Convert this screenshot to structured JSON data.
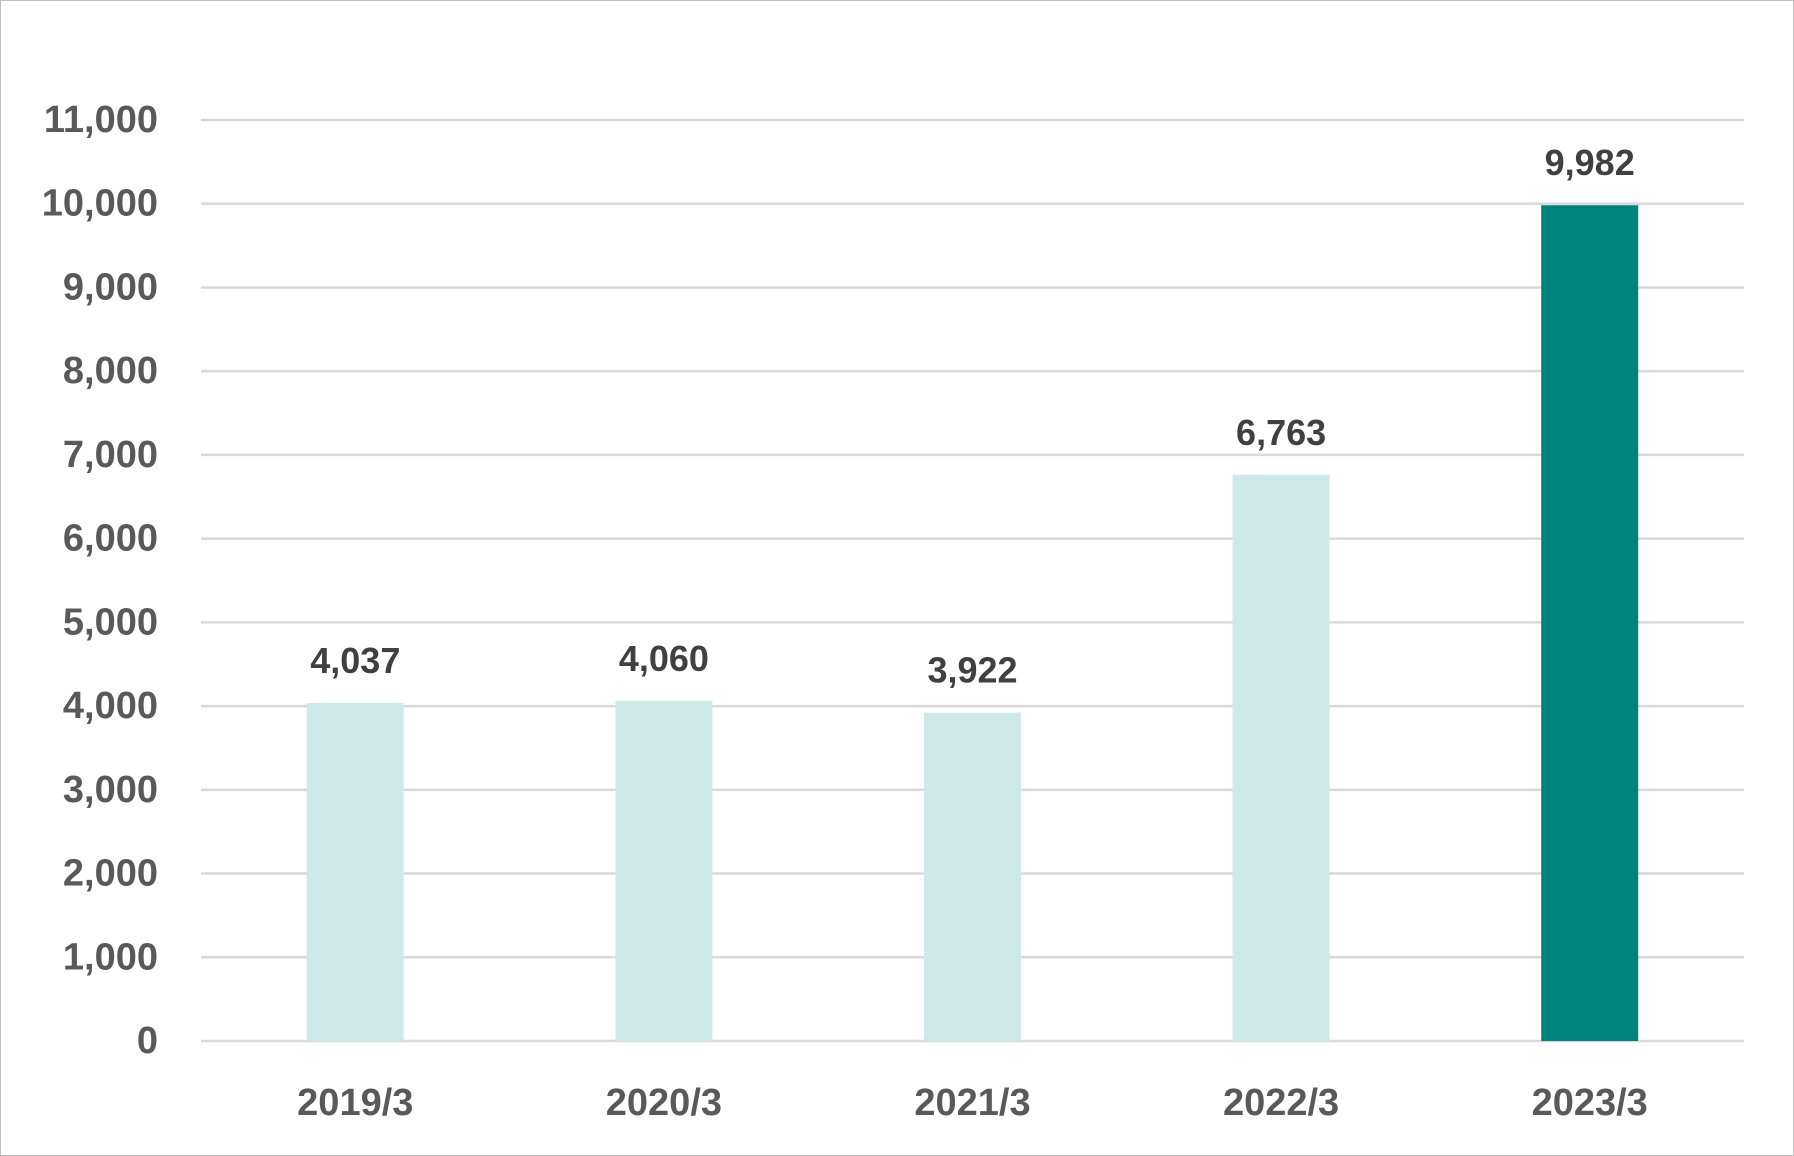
{
  "chart_data": {
    "type": "bar",
    "categories": [
      "2019/3",
      "2020/3",
      "2021/3",
      "2022/3",
      "2023/3"
    ],
    "values": [
      4037,
      4060,
      3922,
      6763,
      9982
    ],
    "value_labels": [
      "4,037",
      "4,060",
      "3,922",
      "6,763",
      "9,982"
    ],
    "title": "",
    "xlabel": "",
    "ylabel": "",
    "ylim": [
      0,
      11000
    ],
    "yticks": [
      0,
      1000,
      2000,
      3000,
      4000,
      5000,
      6000,
      7000,
      8000,
      9000,
      10000,
      11000
    ],
    "ytick_labels": [
      "0",
      "1,000",
      "2,000",
      "3,000",
      "4,000",
      "5,000",
      "6,000",
      "7,000",
      "8,000",
      "9,000",
      "10,000",
      "11,000"
    ],
    "grid": true,
    "legend": "none",
    "colors": {
      "bar_default": "#cdeae9",
      "bar_highlight": "#00837b",
      "gridline": "#d9d9d9",
      "axis_text": "#595959",
      "data_label_text": "#404040"
    },
    "highlight_index": 4
  }
}
